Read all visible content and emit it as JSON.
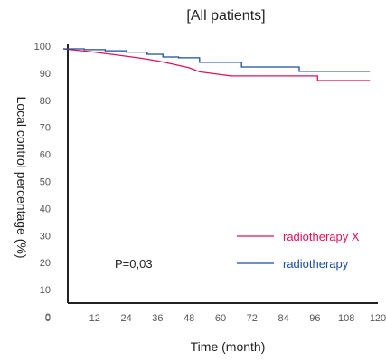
{
  "chart_data": {
    "type": "line",
    "title": "[All patients]",
    "xlabel": "Time (month)",
    "ylabel": "Local control percentage (%)",
    "xlim": [
      0,
      120
    ],
    "ylim": [
      0,
      100
    ],
    "x_ticks": [
      12,
      24,
      36,
      48,
      60,
      72,
      84,
      96,
      108,
      120
    ],
    "y_ticks": [
      0,
      10,
      20,
      30,
      40,
      50,
      60,
      70,
      80,
      90,
      100
    ],
    "x_tick_labels": [
      "12",
      "24",
      "36",
      "48",
      "60",
      "72",
      "84",
      "96",
      "108",
      "120"
    ],
    "y_tick_labels": [
      "0",
      "10",
      "20",
      "30",
      "40",
      "50",
      "60",
      "70",
      "80",
      "90",
      "100"
    ],
    "legend_position": "bottom-right",
    "annotation": "P=0,03",
    "grid": false,
    "series": [
      {
        "name": "radiotherapy X",
        "color": "#e0125a",
        "step": false,
        "x": [
          0,
          10,
          20,
          30,
          36,
          42,
          48,
          52,
          56,
          60,
          64,
          70,
          80,
          90,
          96,
          97,
          97,
          100,
          110,
          117
        ],
        "y": [
          99,
          98,
          96.8,
          95.5,
          94.5,
          93.3,
          92,
          90.5,
          90,
          89.5,
          89,
          89,
          89,
          89,
          89,
          89,
          87.3,
          87.3,
          87.3,
          87.3
        ]
      },
      {
        "name": "radiotherapy",
        "color": "#1a4d99",
        "step": true,
        "x": [
          0,
          8,
          16,
          24,
          32,
          38,
          44,
          50,
          52,
          58,
          62,
          66,
          68,
          78,
          88,
          90,
          100,
          110,
          117
        ],
        "y": [
          99,
          98.7,
          98.3,
          97.8,
          97,
          96,
          95.7,
          95.7,
          94,
          94,
          94,
          94,
          92.3,
          92.3,
          92.3,
          90.7,
          90.7,
          90.7,
          90.7
        ]
      }
    ]
  }
}
